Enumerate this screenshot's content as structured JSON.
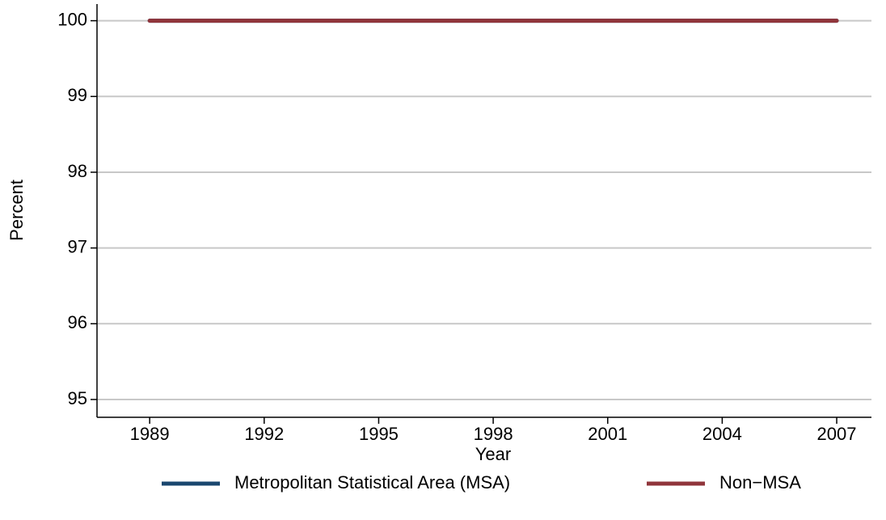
{
  "chart_data": {
    "type": "line",
    "x_label": "Year",
    "y_label": "Percent",
    "x": [
      1989,
      1990,
      1991,
      1992,
      1993,
      1994,
      1995,
      1996,
      1997,
      1998,
      1999,
      2000,
      2001,
      2002,
      2003,
      2004,
      2005,
      2006,
      2007
    ],
    "series": [
      {
        "name": "Metropolitan Statistical Area (MSA)",
        "color": "#1a476f",
        "values": [
          100,
          100,
          100,
          100,
          100,
          100,
          100,
          100,
          100,
          100,
          100,
          100,
          100,
          100,
          100,
          100,
          100,
          100,
          100
        ]
      },
      {
        "name": "Non−MSA",
        "color": "#90353b",
        "values": [
          100,
          100,
          100,
          100,
          100,
          100,
          100,
          100,
          100,
          100,
          100,
          100,
          100,
          100,
          100,
          100,
          100,
          100,
          100
        ]
      }
    ],
    "xlim": [
      1987.62,
      2007.91
    ],
    "xticks": [
      1989,
      1992,
      1995,
      1998,
      2001,
      2004,
      2007
    ],
    "ylim": [
      94.765,
      100.22
    ],
    "yticks": [
      95,
      96,
      97,
      98,
      99,
      100
    ],
    "grid": true,
    "legend": "bottom"
  }
}
